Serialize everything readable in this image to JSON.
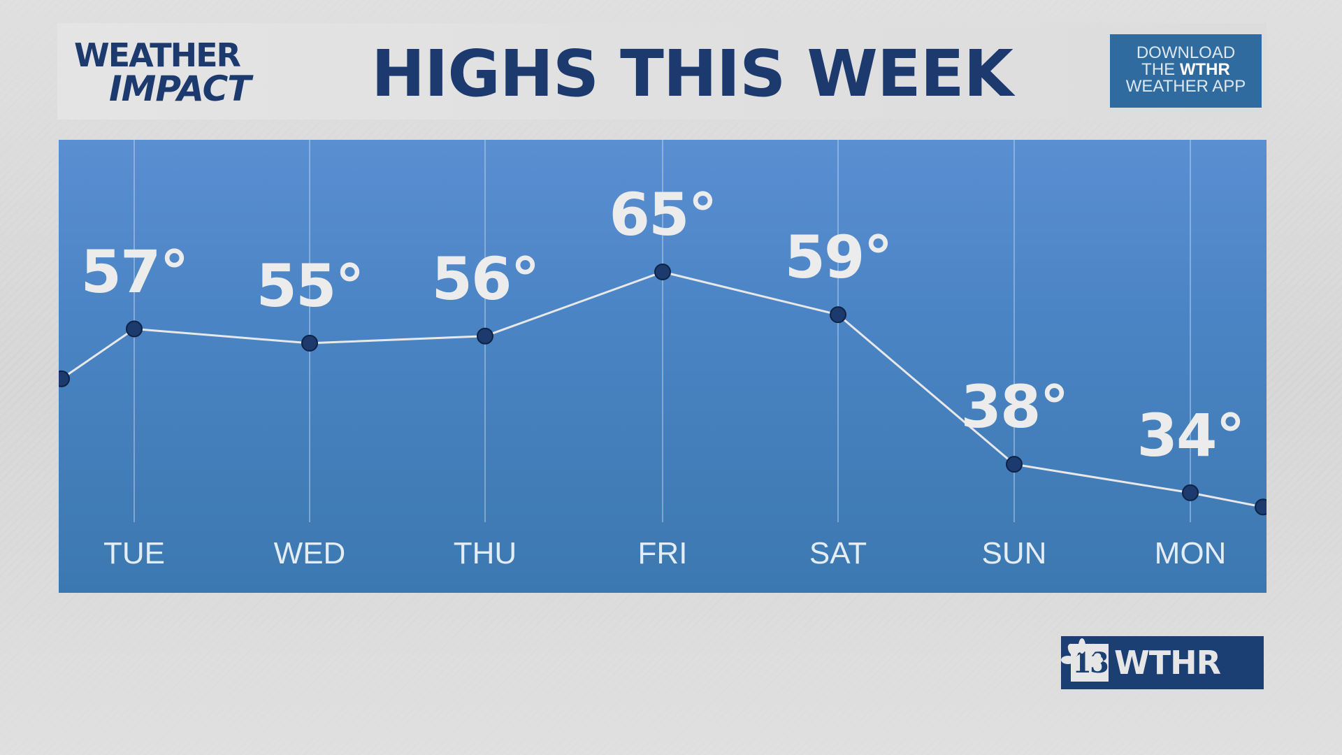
{
  "header": {
    "logo_line1": "WEATHER",
    "logo_line2": "IMPACT",
    "title": "HIGHS THIS WEEK",
    "download_line1": "DOWNLOAD",
    "download_the": "THE",
    "download_brand": "WTHR",
    "download_line3": "WEATHER APP"
  },
  "station": {
    "number": "13",
    "call": "WTHR",
    "network_icon": "peacock-icon"
  },
  "colors": {
    "brand": "#1c3a6e",
    "panel": "#4a84c4",
    "line": "#e8e8e8",
    "dot": "#1c3a6e"
  },
  "chart_data": {
    "type": "line",
    "title": "HIGHS THIS WEEK",
    "categories": [
      "TUE",
      "WED",
      "THU",
      "FRI",
      "SAT",
      "SUN",
      "MON"
    ],
    "values": [
      57,
      55,
      56,
      65,
      59,
      38,
      34
    ],
    "labels": [
      "57°",
      "55°",
      "56°",
      "65°",
      "59°",
      "38°",
      "34°"
    ],
    "edge_values_unlabeled": {
      "before": 50,
      "after": 32
    },
    "grid": "vertical lines per day",
    "unit": "°F"
  }
}
